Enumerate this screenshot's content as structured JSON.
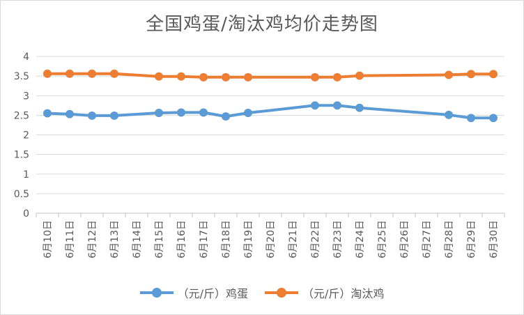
{
  "chart_data": {
    "type": "line",
    "title": "全国鸡蛋/淘汰鸡均价走势图",
    "categories": [
      "6月10日",
      "6月11日",
      "6月12日",
      "6月13日",
      "6月14日",
      "6月15日",
      "6月16日",
      "6月17日",
      "6月18日",
      "6月19日",
      "6月20日",
      "6月21日",
      "6月22日",
      "6月23日",
      "6月24日",
      "6月25日",
      "6月26日",
      "6月27日",
      "6月28日",
      "6月29日",
      "6月30日"
    ],
    "y_ticks": [
      "0",
      "0.5",
      "1",
      "1.5",
      "2",
      "2.5",
      "3",
      "3.5",
      "4"
    ],
    "ylim": [
      0,
      4
    ],
    "grid": true,
    "legend_position": "bottom",
    "series": [
      {
        "name": "（元/斤）鸡蛋",
        "color": "#5b9bd5",
        "values": [
          2.55,
          2.53,
          2.49,
          2.49,
          null,
          2.56,
          2.57,
          2.57,
          2.47,
          2.56,
          null,
          null,
          2.75,
          2.75,
          2.69,
          null,
          null,
          null,
          2.51,
          2.43,
          2.43
        ]
      },
      {
        "name": "（元/斤）淘汰鸡",
        "color": "#ed7d31",
        "values": [
          3.56,
          3.56,
          3.56,
          3.56,
          null,
          3.49,
          3.49,
          3.47,
          3.47,
          3.47,
          null,
          null,
          3.47,
          3.47,
          3.51,
          null,
          null,
          null,
          3.53,
          3.55,
          3.55
        ]
      }
    ]
  }
}
